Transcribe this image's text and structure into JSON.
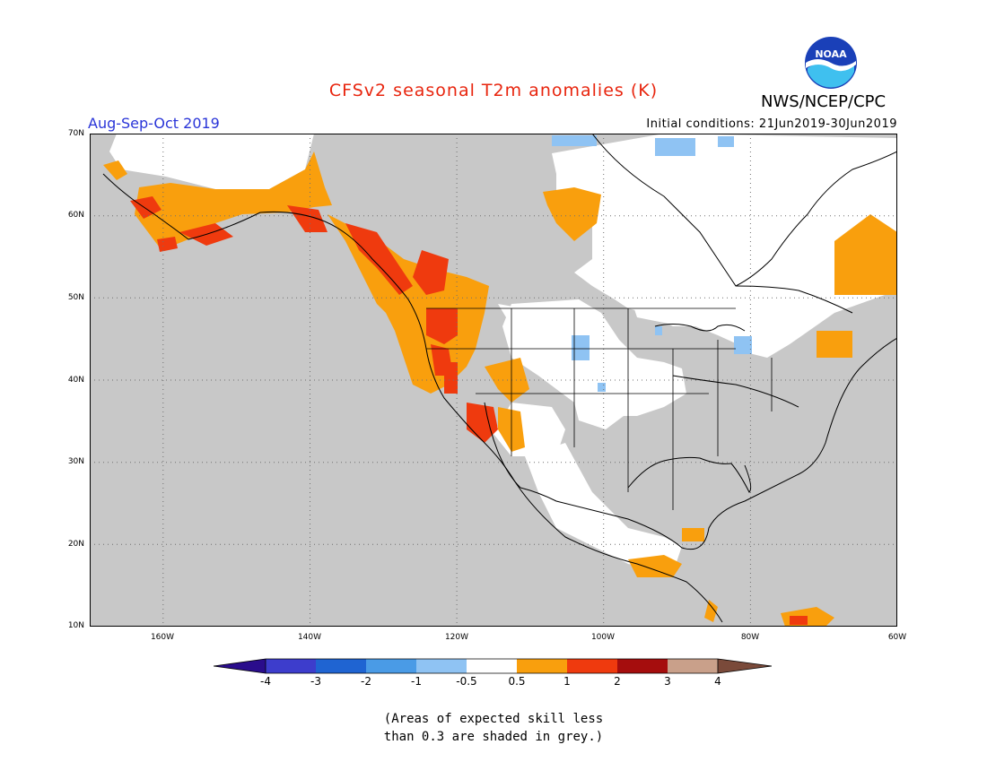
{
  "header": {
    "title": "CFSv2 seasonal T2m anomalies (K)",
    "period": "Aug-Sep-Oct 2019",
    "initial_conditions": "Initial conditions: 21Jun2019-30Jun2019",
    "agency": "NWS/NCEP/CPC",
    "logo_text": "NOAA"
  },
  "map": {
    "lat_labels": [
      "70N",
      "60N",
      "50N",
      "40N",
      "30N",
      "20N",
      "10N"
    ],
    "lon_labels": [
      "160W",
      "140W",
      "120W",
      "100W",
      "80W",
      "60W"
    ],
    "skill_mask_color": "#c8c8c8",
    "land_neutral_color": "#ffffff"
  },
  "colorbar": {
    "labels": [
      "-4",
      "-3",
      "-2",
      "-1",
      "-0.5",
      "0.5",
      "1",
      "2",
      "3",
      "4"
    ],
    "colors": [
      "#2a0d8c",
      "#3d3dcc",
      "#1f64d2",
      "#4a9be6",
      "#8fc3f3",
      "#ffffff",
      "#f99f0d",
      "#ef3a0e",
      "#a50d0d",
      "#c9a08a",
      "#7a4a3a"
    ]
  },
  "footnote": {
    "line1": "(Areas of expected skill less",
    "line2": "than 0.3 are shaded in grey.)"
  }
}
